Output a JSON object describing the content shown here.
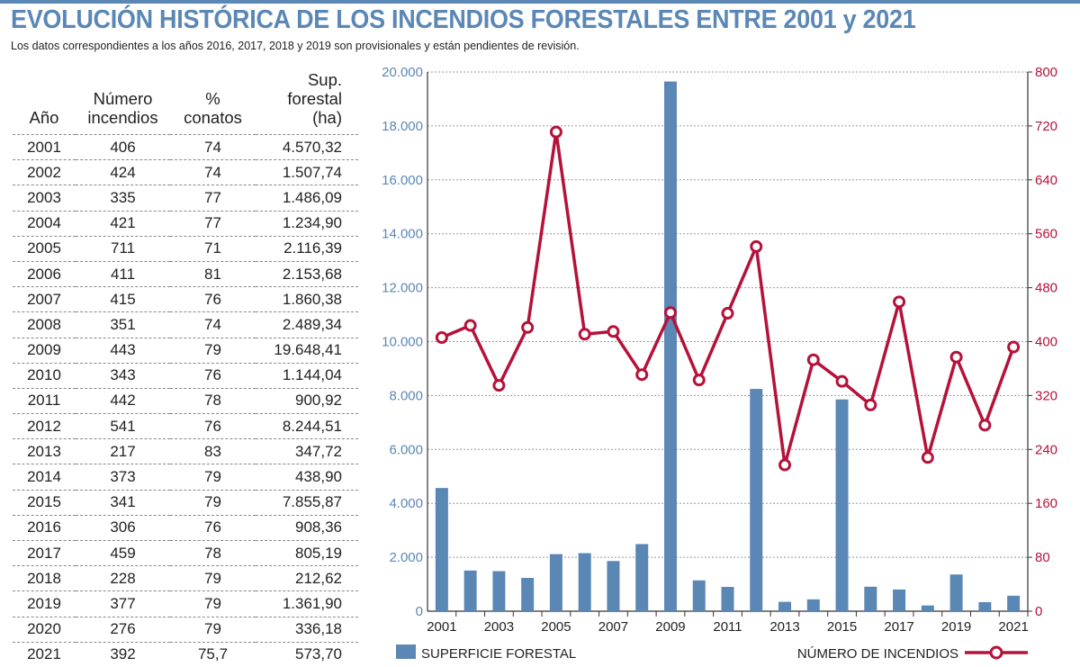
{
  "title": "EVOLUCIÓN HISTÓRICA DE LOS INCENDIOS FORESTALES ENTRE 2001 y 2021",
  "subtitle": "Los datos correspondientes a los años 2016, 2017, 2018 y 2019 son provisionales y están pendientes de revisión.",
  "table": {
    "headers": [
      [
        "",
        "Año"
      ],
      [
        "Número",
        "incendios"
      ],
      [
        "%",
        "conatos"
      ],
      [
        "Sup.",
        "forestal (ha)"
      ]
    ],
    "rows": [
      [
        "2001",
        "406",
        "74",
        "4.570,32"
      ],
      [
        "2002",
        "424",
        "74",
        "1.507,74"
      ],
      [
        "2003",
        "335",
        "77",
        "1.486,09"
      ],
      [
        "2004",
        "421",
        "77",
        "1.234,90"
      ],
      [
        "2005",
        "711",
        "71",
        "2.116,39"
      ],
      [
        "2006",
        "411",
        "81",
        "2.153,68"
      ],
      [
        "2007",
        "415",
        "76",
        "1.860,38"
      ],
      [
        "2008",
        "351",
        "74",
        "2.489,34"
      ],
      [
        "2009",
        "443",
        "79",
        "19.648,41"
      ],
      [
        "2010",
        "343",
        "76",
        "1.144,04"
      ],
      [
        "2011",
        "442",
        "78",
        "900,92"
      ],
      [
        "2012",
        "541",
        "76",
        "8.244,51"
      ],
      [
        "2013",
        "217",
        "83",
        "347,72"
      ],
      [
        "2014",
        "373",
        "79",
        "438,90"
      ],
      [
        "2015",
        "341",
        "79",
        "7.855,87"
      ],
      [
        "2016",
        "306",
        "76",
        "908,36"
      ],
      [
        "2017",
        "459",
        "78",
        "805,19"
      ],
      [
        "2018",
        "228",
        "79",
        "212,62"
      ],
      [
        "2019",
        "377",
        "79",
        "1.361,90"
      ],
      [
        "2020",
        "276",
        "79",
        "336,18"
      ],
      [
        "2021",
        "392",
        "75,7",
        "573,70"
      ]
    ]
  },
  "chart_data": {
    "type": "bar+line",
    "categories": [
      "2001",
      "2002",
      "2003",
      "2004",
      "2005",
      "2006",
      "2007",
      "2008",
      "2009",
      "2010",
      "2011",
      "2012",
      "2013",
      "2014",
      "2015",
      "2016",
      "2017",
      "2018",
      "2019",
      "2020",
      "2021"
    ],
    "x_tick_labels": [
      "2001",
      "2003",
      "2005",
      "2007",
      "2009",
      "2011",
      "2013",
      "2015",
      "2017",
      "2019",
      "2021"
    ],
    "series": [
      {
        "name": "SUPERFICIE FORESTAL",
        "type": "bar",
        "axis": "left",
        "color": "#5b87b5",
        "values": [
          4570.32,
          1507.74,
          1486.09,
          1234.9,
          2116.39,
          2153.68,
          1860.38,
          2489.34,
          19648.41,
          1144.04,
          900.92,
          8244.51,
          347.72,
          438.9,
          7855.87,
          908.36,
          805.19,
          212.62,
          1361.9,
          336.18,
          573.7
        ]
      },
      {
        "name": "NÚMERO DE INCENDIOS",
        "type": "line",
        "axis": "right",
        "color": "#b5123a",
        "values": [
          406,
          424,
          335,
          421,
          711,
          411,
          415,
          351,
          443,
          343,
          442,
          541,
          217,
          373,
          341,
          306,
          459,
          228,
          377,
          276,
          392
        ]
      }
    ],
    "left_axis": {
      "ylim": [
        0,
        20000
      ],
      "ticks": [
        "0",
        "2.000",
        "4.000",
        "6.000",
        "8.000",
        "10.000",
        "12.000",
        "14.000",
        "16.000",
        "18.000",
        "20.000"
      ],
      "color": "#5b87b5"
    },
    "right_axis": {
      "ylim": [
        0,
        800
      ],
      "ticks": [
        "0",
        "80",
        "160",
        "240",
        "320",
        "400",
        "480",
        "560",
        "640",
        "720",
        "800"
      ],
      "color": "#b5123a"
    },
    "grid": true,
    "legend": "bottom"
  }
}
